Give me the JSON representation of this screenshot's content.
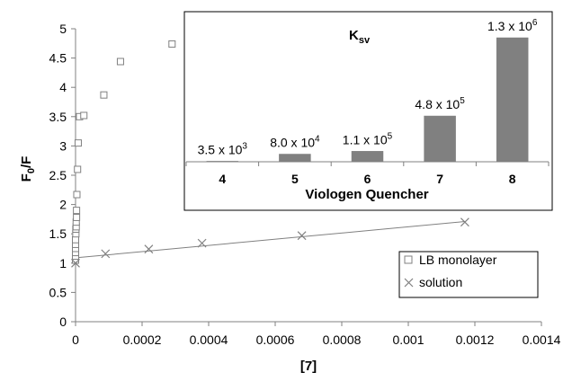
{
  "chart_data": [
    {
      "type": "scatter",
      "ylabel_main": "F",
      "ylabel_sub": "0",
      "ylabel_suffix": "/F",
      "xlabel": "[7]",
      "xlim": [
        0,
        0.0014
      ],
      "ylim": [
        0,
        5
      ],
      "x_ticks": [
        "0",
        "0.0002",
        "0.0004",
        "0.0006",
        "0.0008",
        "0.001",
        "0.0012",
        "0.0014"
      ],
      "y_ticks": [
        "0",
        "0.5",
        "1",
        "1.5",
        "2",
        "2.5",
        "3",
        "3.5",
        "4",
        "4.5",
        "5"
      ],
      "x_tick_values": [
        0,
        0.0002,
        0.0004,
        0.0006,
        0.0008,
        0.001,
        0.0012,
        0.0014
      ],
      "y_tick_values": [
        0,
        0.5,
        1,
        1.5,
        2,
        2.5,
        3,
        3.5,
        4,
        4.5,
        5
      ],
      "legend_position": "bottom-right",
      "series": [
        {
          "name": "LB monolayer",
          "marker": "square",
          "color": "#808080",
          "x": [
            0.0,
            0.0,
            0.0,
            0.0,
            0.0,
            0.0,
            1e-06,
            1e-06,
            2e-06,
            2e-06,
            3e-06,
            3e-06,
            4e-06,
            6e-06,
            8e-06,
            1.2e-05,
            2.5e-05,
            8.5e-05,
            0.000135,
            0.00029
          ],
          "y": [
            1.05,
            1.12,
            1.18,
            1.25,
            1.32,
            1.4,
            1.5,
            1.58,
            1.62,
            1.7,
            1.78,
            1.9,
            2.17,
            2.6,
            3.05,
            3.5,
            3.52,
            3.87,
            4.44,
            4.74
          ]
        },
        {
          "name": "solution",
          "marker": "x",
          "color": "#808080",
          "x": [
            0.0,
            9e-05,
            0.00022,
            0.00038,
            0.00068,
            0.00117
          ],
          "y": [
            1.0,
            1.16,
            1.24,
            1.34,
            1.47,
            1.7
          ],
          "trendline": {
            "x": [
              0.0,
              0.00117
            ],
            "y": [
              1.09,
              1.71
            ]
          }
        }
      ]
    },
    {
      "type": "bar",
      "title_main": "K",
      "title_sub": "sv",
      "xlabel": "Viologen Quencher",
      "categories": [
        "4",
        "5",
        "6",
        "7",
        "8"
      ],
      "values": [
        3500,
        80000,
        110000,
        480000,
        1300000
      ],
      "value_labels": [
        {
          "base": "3.5 x 10",
          "exp": "3"
        },
        {
          "base": "8.0 x 10",
          "exp": "4"
        },
        {
          "base": "1.1 x 10",
          "exp": "5"
        },
        {
          "base": "4.8 x 10",
          "exp": "5"
        },
        {
          "base": "1.3 x 10",
          "exp": "6"
        }
      ],
      "ylim": [
        0,
        1300000
      ],
      "bar_color": "#808080"
    }
  ]
}
